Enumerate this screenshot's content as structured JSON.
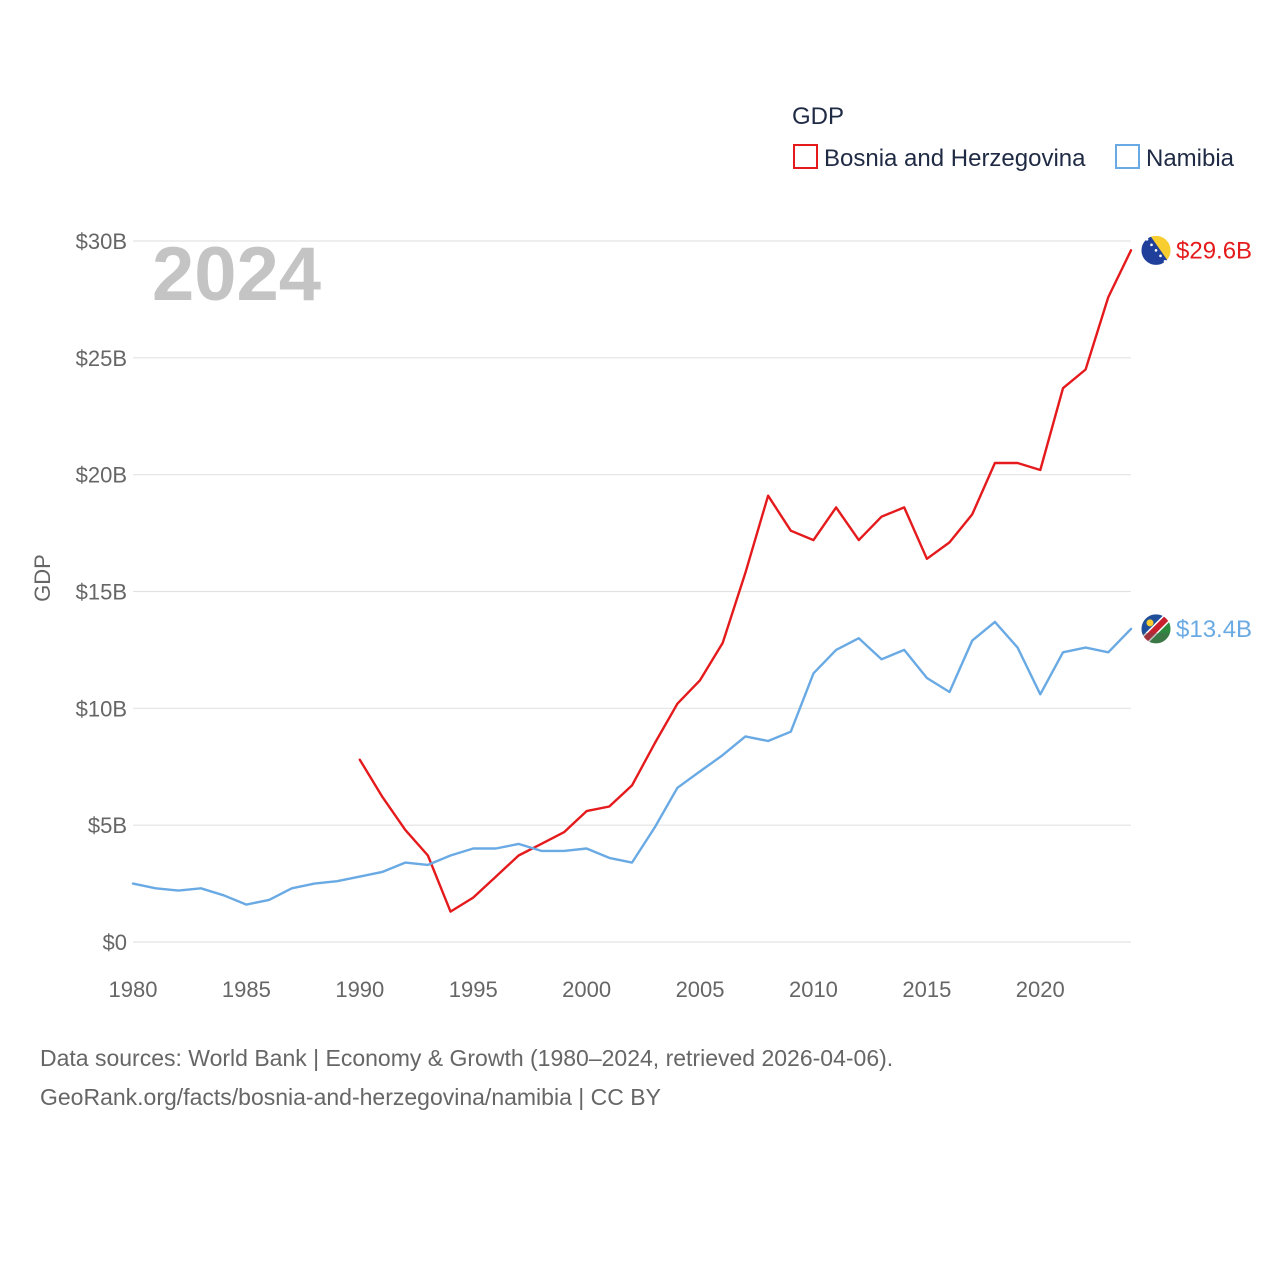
{
  "chart_data": {
    "type": "line",
    "title": "",
    "legend_title": "GDP",
    "year_label": "2024",
    "ylabel": "GDP",
    "xlabel": "",
    "xlim": [
      1980,
      2024
    ],
    "ylim": [
      0,
      30
    ],
    "x_ticks": [
      "1980",
      "1985",
      "1990",
      "1995",
      "2000",
      "2005",
      "2010",
      "2015",
      "2020"
    ],
    "y_ticks": [
      "$0",
      "$5B",
      "$10B",
      "$15B",
      "$20B",
      "$25B",
      "$30B"
    ],
    "y_tick_values": [
      0,
      5,
      10,
      15,
      20,
      25,
      30
    ],
    "x_tick_values": [
      1980,
      1985,
      1990,
      1995,
      2000,
      2005,
      2010,
      2015,
      2020
    ],
    "grid": true,
    "legend_position": "top-right",
    "series": [
      {
        "name": "Bosnia and Herzegovina",
        "color": "#e41a1c",
        "end_label": "$29.6B",
        "flag_icon": "bosnia-flag-icon",
        "x": [
          1990,
          1991,
          1992,
          1993,
          1994,
          1995,
          1996,
          1997,
          1998,
          1999,
          2000,
          2001,
          2002,
          2003,
          2004,
          2005,
          2006,
          2007,
          2008,
          2009,
          2010,
          2011,
          2012,
          2013,
          2014,
          2015,
          2016,
          2017,
          2018,
          2019,
          2020,
          2021,
          2022,
          2023,
          2024
        ],
        "values": [
          7.8,
          6.2,
          4.8,
          3.7,
          1.3,
          1.9,
          2.8,
          3.7,
          4.2,
          4.7,
          5.6,
          5.8,
          6.7,
          8.5,
          10.2,
          11.2,
          12.8,
          15.8,
          19.1,
          17.6,
          17.2,
          18.6,
          17.2,
          18.2,
          18.6,
          16.4,
          17.1,
          18.3,
          20.5,
          20.5,
          20.2,
          23.7,
          24.5,
          27.6,
          29.6
        ]
      },
      {
        "name": "Namibia",
        "color": "#6aaae4",
        "end_label": "$13.4B",
        "flag_icon": "namibia-flag-icon",
        "x": [
          1980,
          1981,
          1982,
          1983,
          1984,
          1985,
          1986,
          1987,
          1988,
          1989,
          1990,
          1991,
          1992,
          1993,
          1994,
          1995,
          1996,
          1997,
          1998,
          1999,
          2000,
          2001,
          2002,
          2003,
          2004,
          2005,
          2006,
          2007,
          2008,
          2009,
          2010,
          2011,
          2012,
          2013,
          2014,
          2015,
          2016,
          2017,
          2018,
          2019,
          2020,
          2021,
          2022,
          2023,
          2024
        ],
        "values": [
          2.5,
          2.3,
          2.2,
          2.3,
          2.0,
          1.6,
          1.8,
          2.3,
          2.5,
          2.6,
          2.8,
          3.0,
          3.4,
          3.3,
          3.7,
          4.0,
          4.0,
          4.2,
          3.9,
          3.9,
          4.0,
          3.6,
          3.4,
          4.9,
          6.6,
          7.3,
          8.0,
          8.8,
          8.6,
          9.0,
          11.5,
          12.5,
          13.0,
          12.1,
          12.5,
          11.3,
          10.7,
          12.9,
          13.7,
          12.6,
          10.6,
          12.4,
          12.6,
          12.4,
          13.4
        ]
      }
    ]
  },
  "footer": {
    "source_line_1": "Data sources: World Bank | Economy & Growth (1980–2024, retrieved 2026-04-06).",
    "source_line_2": "GeoRank.org/facts/bosnia-and-herzegovina/namibia | CC BY"
  }
}
